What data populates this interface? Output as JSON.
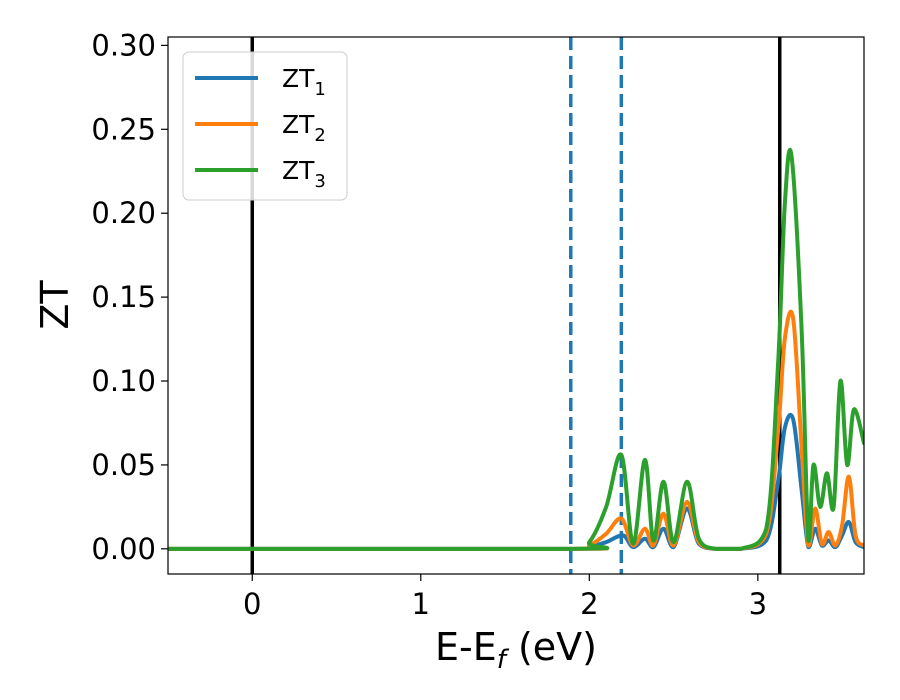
{
  "chart_data": {
    "type": "line",
    "xlabel": "E-E",
    "xlabel_subscript": "f",
    "xlabel_unit": "(eV)",
    "ylabel": "ZT",
    "xlim": [
      -0.5,
      3.63
    ],
    "ylim": [
      -0.015,
      0.305
    ],
    "xticks": [
      0,
      1,
      2,
      3
    ],
    "xtick_labels": [
      "0",
      "1",
      "2",
      "3"
    ],
    "yticks": [
      0.0,
      0.05,
      0.1,
      0.15,
      0.2,
      0.25,
      0.3
    ],
    "ytick_labels": [
      "0.00",
      "0.05",
      "0.10",
      "0.15",
      "0.20",
      "0.25",
      "0.30"
    ],
    "grid": false,
    "legend_position": "upper-left",
    "vertical_lines": [
      {
        "x": 0.0,
        "style": "solid",
        "color": "#000000"
      },
      {
        "x": 1.89,
        "style": "dashed",
        "color": "#1f77b4"
      },
      {
        "x": 2.19,
        "style": "dashed",
        "color": "#1f77b4"
      },
      {
        "x": 3.13,
        "style": "solid",
        "color": "#000000"
      }
    ],
    "series": [
      {
        "name": "ZT",
        "subscript": "1",
        "color": "#1f77b4",
        "x": [
          -0.5,
          1.9,
          2.0,
          2.1,
          2.2,
          2.26,
          2.33,
          2.38,
          2.44,
          2.5,
          2.58,
          2.65,
          2.75,
          2.9,
          3.05,
          3.12,
          3.16,
          3.21,
          3.26,
          3.3,
          3.34,
          3.38,
          3.42,
          3.46,
          3.5,
          3.54,
          3.58,
          3.63
        ],
        "y": [
          0.0,
          0.0,
          0.001,
          0.004,
          0.008,
          0.001,
          0.006,
          0.001,
          0.012,
          0.001,
          0.024,
          0.003,
          0.0,
          0.0,
          0.005,
          0.04,
          0.072,
          0.077,
          0.035,
          0.001,
          0.012,
          0.002,
          0.005,
          0.001,
          0.008,
          0.016,
          0.004,
          0.001
        ]
      },
      {
        "name": "ZT",
        "subscript": "2",
        "color": "#ff7f0e",
        "x": [
          -0.5,
          1.9,
          2.0,
          2.1,
          2.19,
          2.26,
          2.33,
          2.38,
          2.44,
          2.5,
          2.58,
          2.65,
          2.75,
          2.9,
          3.05,
          3.12,
          3.16,
          3.21,
          3.26,
          3.3,
          3.34,
          3.38,
          3.42,
          3.46,
          3.5,
          3.54,
          3.58,
          3.63
        ],
        "y": [
          0.0,
          0.0,
          0.002,
          0.009,
          0.018,
          0.002,
          0.012,
          0.002,
          0.021,
          0.002,
          0.028,
          0.004,
          0.0,
          0.0,
          0.009,
          0.07,
          0.125,
          0.137,
          0.06,
          0.002,
          0.024,
          0.003,
          0.01,
          0.002,
          0.014,
          0.043,
          0.008,
          0.002
        ]
      },
      {
        "name": "ZT",
        "subscript": "3",
        "color": "#2ca02c",
        "x": [
          -0.5,
          1.9,
          2.0,
          2.1,
          2.19,
          2.26,
          2.33,
          2.38,
          2.44,
          2.5,
          2.58,
          2.65,
          2.75,
          2.9,
          3.05,
          3.12,
          3.16,
          3.2,
          3.26,
          3.3,
          3.33,
          3.37,
          3.41,
          3.45,
          3.49,
          3.53,
          3.57,
          3.63
        ],
        "y": [
          0.0,
          0.0,
          0.004,
          0.025,
          0.056,
          0.003,
          0.053,
          0.005,
          0.04,
          0.004,
          0.04,
          0.006,
          0.0,
          0.0,
          0.012,
          0.11,
          0.205,
          0.234,
          0.13,
          0.005,
          0.05,
          0.025,
          0.045,
          0.025,
          0.1,
          0.05,
          0.083,
          0.063
        ]
      }
    ]
  }
}
